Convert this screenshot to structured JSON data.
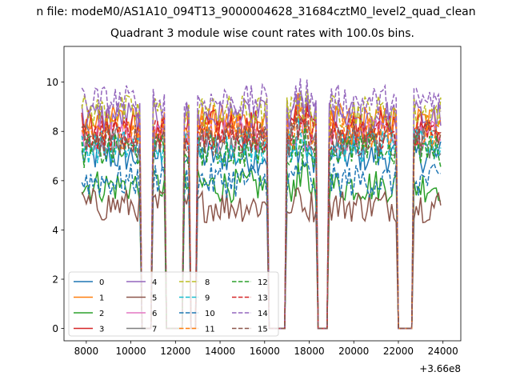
{
  "figure": {
    "suptitle": "n file: modeM0/AS1A10_094T13_9000004628_31684cztM0_level2_quad_clean",
    "title": "Quadrant 3 module wise count rates with 100.0s bins.",
    "offset_label": "+3.66e8"
  },
  "chart_data": {
    "type": "line",
    "title": "Quadrant 3 module wise count rates with 100.0s bins.",
    "xlabel": "",
    "ylabel": "",
    "x_offset": 366000000,
    "xlim": [
      7000,
      24800
    ],
    "ylim": [
      -0.5,
      11.45
    ],
    "xticks": [
      8000,
      10000,
      12000,
      14000,
      16000,
      18000,
      20000,
      22000,
      24000
    ],
    "yticks": [
      0,
      2,
      4,
      6,
      8,
      10
    ],
    "legend_loc": "lower left",
    "legend_columns": 4,
    "data_segments": [
      [
        7800,
        10400
      ],
      [
        11000,
        11500
      ],
      [
        12400,
        12600
      ],
      [
        13000,
        16100
      ],
      [
        17000,
        18300
      ],
      [
        18900,
        21900
      ],
      [
        22700,
        23900
      ]
    ],
    "dips_to_zero": [
      [
        10400,
        11000
      ],
      [
        11500,
        12400
      ],
      [
        16100,
        17000
      ],
      [
        18300,
        18900
      ],
      [
        21900,
        22700
      ]
    ],
    "series": [
      {
        "name": "0",
        "color": "#1f77b4",
        "dash": "solid",
        "mean": 7.0
      },
      {
        "name": "1",
        "color": "#ff7f0e",
        "dash": "solid",
        "mean": 8.4
      },
      {
        "name": "2",
        "color": "#2ca02c",
        "dash": "solid",
        "mean": 5.8
      },
      {
        "name": "3",
        "color": "#d62728",
        "dash": "solid",
        "mean": 8.2
      },
      {
        "name": "4",
        "color": "#9467bd",
        "dash": "solid",
        "mean": 8.6
      },
      {
        "name": "5",
        "color": "#8c564b",
        "dash": "solid",
        "mean": 5.0
      },
      {
        "name": "6",
        "color": "#e377c2",
        "dash": "solid",
        "mean": 7.8
      },
      {
        "name": "7",
        "color": "#7f7f7f",
        "dash": "solid",
        "mean": 7.6
      },
      {
        "name": "8",
        "color": "#bcbd22",
        "dash": "dashed",
        "mean": 8.8
      },
      {
        "name": "9",
        "color": "#17becf",
        "dash": "dashed",
        "mean": 7.4
      },
      {
        "name": "10",
        "color": "#1f77b4",
        "dash": "dashed",
        "mean": 6.0
      },
      {
        "name": "11",
        "color": "#ff7f0e",
        "dash": "dashed",
        "mean": 8.0
      },
      {
        "name": "12",
        "color": "#2ca02c",
        "dash": "dashed",
        "mean": 7.2
      },
      {
        "name": "13",
        "color": "#d62728",
        "dash": "dashed",
        "mean": 7.9
      },
      {
        "name": "14",
        "color": "#9467bd",
        "dash": "dashed",
        "mean": 9.2
      },
      {
        "name": "15",
        "color": "#8c564b",
        "dash": "dashed",
        "mean": 7.7
      }
    ]
  }
}
